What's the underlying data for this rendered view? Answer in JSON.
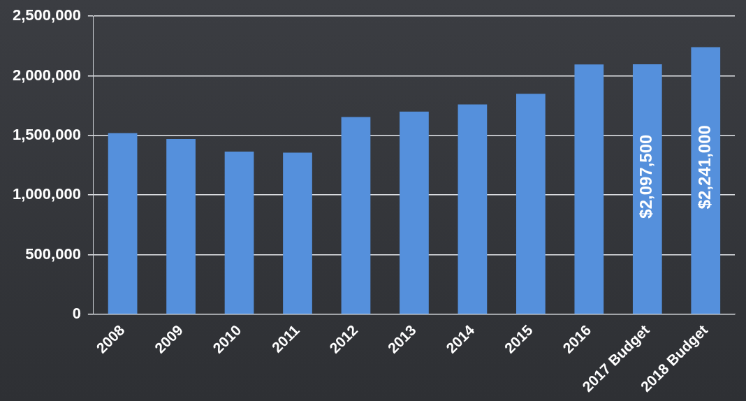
{
  "chart_data": {
    "type": "bar",
    "categories": [
      "2008",
      "2009",
      "2010",
      "2011",
      "2012",
      "2013",
      "2014",
      "2015",
      "2016",
      "2017 Budget",
      "2018 Budget"
    ],
    "values": [
      1520000,
      1470000,
      1365000,
      1355000,
      1655000,
      1700000,
      1760000,
      1850000,
      2095000,
      2097500,
      2241000
    ],
    "value_labels": [
      null,
      null,
      null,
      null,
      null,
      null,
      null,
      null,
      null,
      "$2,097,500",
      "$2,241,000"
    ],
    "data_labels": true,
    "color": "#5590dc",
    "ylim": [
      0,
      2500000
    ],
    "yticks": [
      0,
      {
        "value": 500000,
        "label": "500,000"
      },
      {
        "value": 1000000,
        "label": "1,000,000"
      },
      {
        "value": 1500000,
        "label": "1,500,000"
      },
      {
        "value": 2000000,
        "label": "2,000,000"
      },
      {
        "value": 2500000,
        "label": "2,500,000"
      }
    ],
    "grid": true
  }
}
